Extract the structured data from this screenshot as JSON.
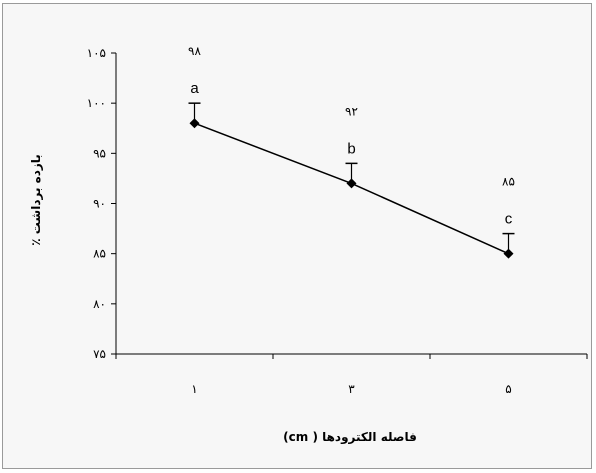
{
  "chart_data": {
    "type": "line",
    "title": "",
    "xlabel": "فاصله الکترودها ( cm)",
    "ylabel": "بازده برداشت ٪",
    "x": [
      1,
      3,
      5
    ],
    "x_tick_labels": [
      "۱",
      "۳",
      "۵"
    ],
    "ylim": [
      75,
      105
    ],
    "y_ticks": [
      75,
      80,
      85,
      90,
      95,
      100,
      105
    ],
    "y_tick_labels": [
      "۷۵",
      "۸۰",
      "۸۵",
      "۹۰",
      "۹۵",
      "۱۰۰",
      "۱۰۵"
    ],
    "grid": false,
    "legend": "none",
    "series": [
      {
        "values": [
          98,
          92,
          85
        ],
        "error_upper": [
          2,
          2,
          2
        ],
        "value_labels": [
          "۹۸",
          "۹۲",
          "۸۵"
        ],
        "group_letters": [
          "a",
          "b",
          "c"
        ],
        "marker": "diamond",
        "color": "#000000"
      }
    ]
  }
}
